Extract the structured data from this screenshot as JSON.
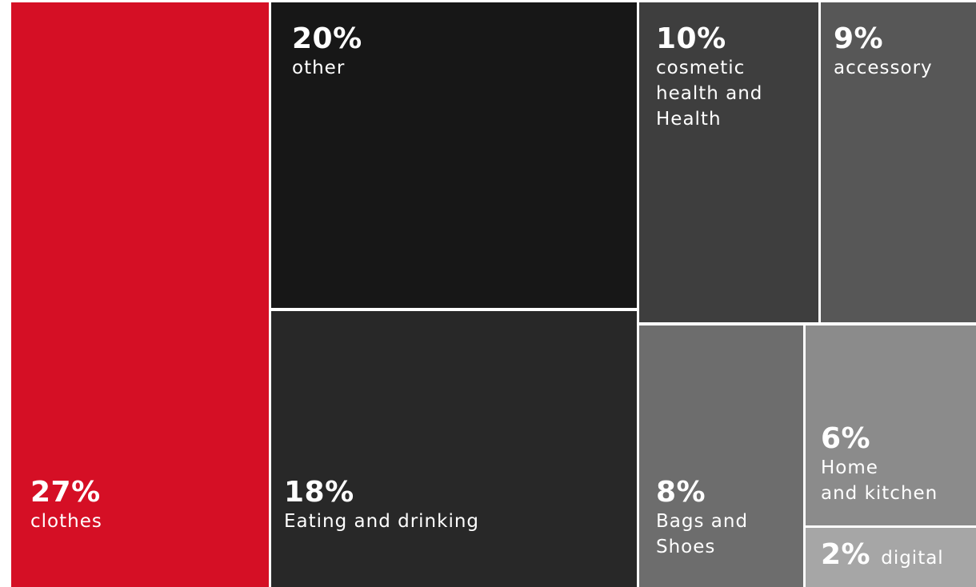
{
  "chart_data": {
    "type": "treemap",
    "title": "",
    "categories": [
      "clothes",
      "other",
      "Eating and drinking",
      "cosmetic health and Health",
      "accessory",
      "Bags and Shoes",
      "Home and kitchen",
      "digital"
    ],
    "values": [
      27,
      20,
      18,
      10,
      9,
      8,
      6,
      2
    ],
    "unit": "%",
    "tiles": [
      {
        "id": "clothes",
        "value_label": "27%",
        "label": "clothes",
        "color": "#d50f25"
      },
      {
        "id": "other",
        "value_label": "20%",
        "label": "other",
        "color": "#171717"
      },
      {
        "id": "eating",
        "value_label": "18%",
        "label": "Eating and drinking",
        "color": "#282828"
      },
      {
        "id": "cosmetic",
        "value_label": "10%",
        "label": "cosmetic\nhealth and\nHealth",
        "color": "#3e3e3e"
      },
      {
        "id": "accessory",
        "value_label": "9%",
        "label": "accessory",
        "color": "#575757"
      },
      {
        "id": "bags",
        "value_label": "8%",
        "label": "Bags and\nShoes",
        "color": "#6d6d6d"
      },
      {
        "id": "home",
        "value_label": "6%",
        "label": "Home\nand kitchen",
        "color": "#8b8b8b"
      },
      {
        "id": "digital",
        "value_label": "2%",
        "label": "digital",
        "color": "#a6a6a6"
      }
    ]
  }
}
